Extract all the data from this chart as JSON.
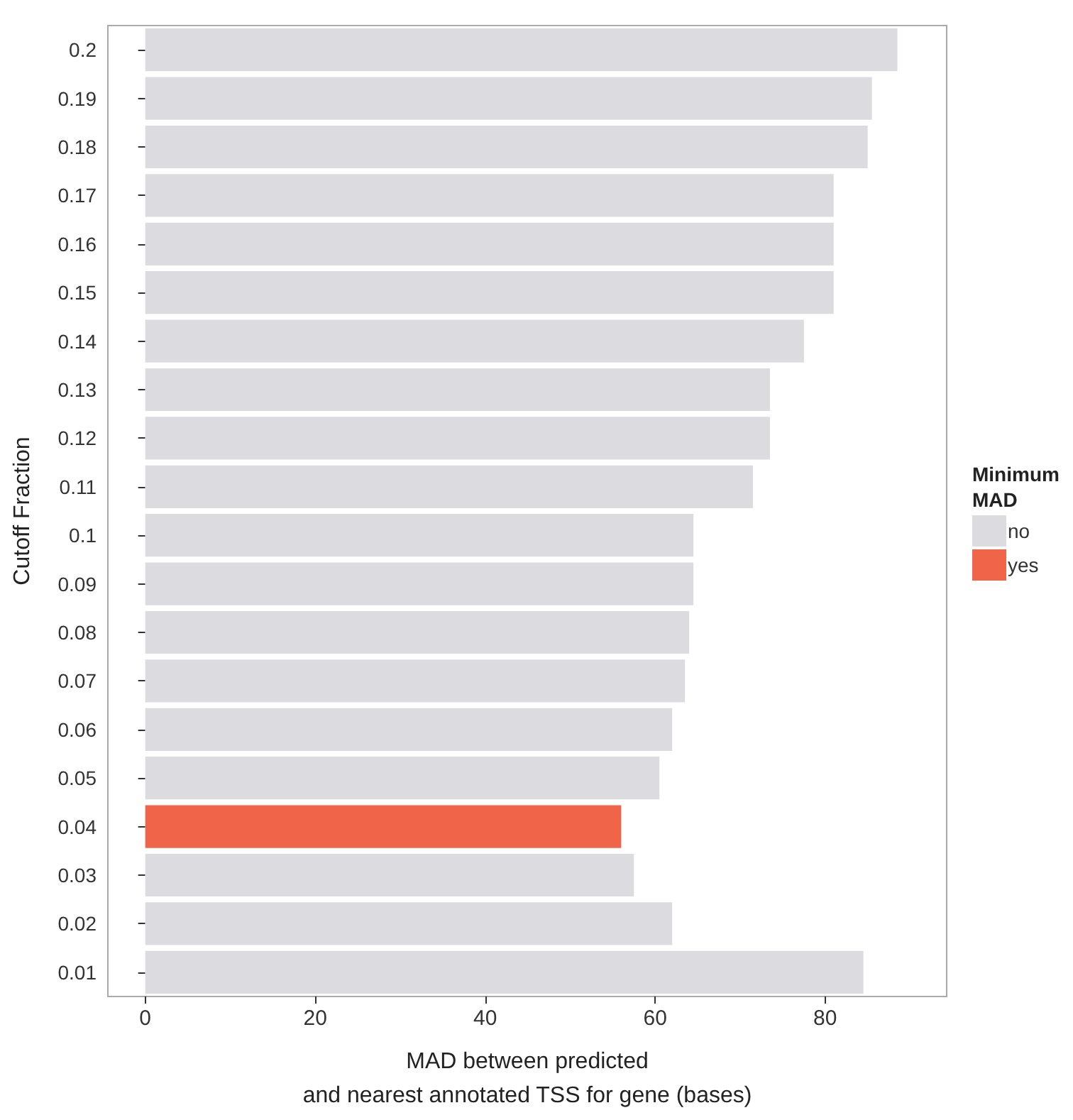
{
  "chart_data": {
    "type": "bar",
    "orientation": "horizontal",
    "stacked": true,
    "xlabel": "MAD between predicted\nand nearest annotated TSS for gene (bases)",
    "ylabel": "Cutoff Fraction",
    "legend_title": "Minimum\nMAD",
    "categories": [
      "0.2",
      "0.19",
      "0.18",
      "0.17",
      "0.16",
      "0.15",
      "0.14",
      "0.13",
      "0.12",
      "0.11",
      "0.1",
      "0.09",
      "0.08",
      "0.07",
      "0.06",
      "0.05",
      "0.04",
      "0.03",
      "0.02",
      "0.01"
    ],
    "series": [
      {
        "name": "no",
        "color": "#dcdce0",
        "values": [
          88.5,
          85.5,
          85,
          81,
          81,
          81,
          77.5,
          73.5,
          73.5,
          71.5,
          64.5,
          64.5,
          64,
          63.5,
          62,
          60.5,
          null,
          57.5,
          62,
          84.5
        ]
      },
      {
        "name": "yes",
        "color": "#f0644a",
        "values": [
          null,
          null,
          null,
          null,
          null,
          null,
          null,
          null,
          null,
          null,
          null,
          null,
          null,
          null,
          null,
          null,
          56,
          null,
          null,
          null
        ]
      }
    ],
    "xlim": [
      -4.4,
      94.3
    ],
    "xticks": [
      0,
      20,
      40,
      60,
      80
    ],
    "grid": false,
    "legend": "right"
  }
}
